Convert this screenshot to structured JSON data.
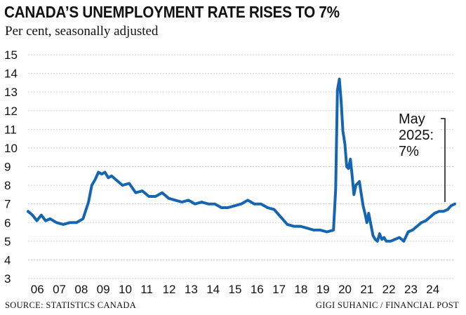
{
  "title": "CANADA’S UNEMPLOYMENT RATE RISES TO 7%",
  "subtitle": "Per cent, seasonally adjusted",
  "source": "SOURCE: STATISTICS CANADA",
  "credit": "GIGI SUHANIC / FINANCIAL POST",
  "annotation": {
    "line1": "May",
    "line2": "2025:",
    "line3": "7%"
  },
  "colors": {
    "line": "#1565b0",
    "text": "#111111",
    "grid": "#cfcfcf"
  },
  "chart_data": {
    "type": "line",
    "title": "CANADA’S UNEMPLOYMENT RATE RISES TO 7%",
    "subtitle": "Per cent, seasonally adjusted",
    "ylim": [
      3,
      15
    ],
    "yticks": [
      3,
      4,
      5,
      6,
      7,
      8,
      9,
      10,
      11,
      12,
      13,
      14,
      15
    ],
    "xlim": [
      2006.0,
      2025.42
    ],
    "xtick_labels": [
      "06",
      "07",
      "08",
      "09",
      "10",
      "11",
      "12",
      "13",
      "14",
      "15",
      "16",
      "17",
      "18",
      "19",
      "20",
      "21",
      "22",
      "23",
      "24"
    ],
    "grid": true,
    "series": [
      {
        "x": [
          2006.0,
          2006.2,
          2006.4,
          2006.6,
          2006.8,
          2007.0,
          2007.3,
          2007.6,
          2007.9,
          2008.2,
          2008.5,
          2008.75,
          2008.9,
          2009.05,
          2009.2,
          2009.35,
          2009.5,
          2009.65,
          2009.8,
          2010.0,
          2010.3,
          2010.6,
          2010.9,
          2011.2,
          2011.5,
          2011.8,
          2012.1,
          2012.4,
          2012.7,
          2013.0,
          2013.3,
          2013.6,
          2013.9,
          2014.2,
          2014.5,
          2014.8,
          2015.1,
          2015.4,
          2015.7,
          2016.0,
          2016.3,
          2016.6,
          2016.9,
          2017.2,
          2017.5,
          2017.8,
          2018.1,
          2018.4,
          2018.7,
          2019.0,
          2019.3,
          2019.6,
          2019.9,
          2020.0,
          2020.08,
          2020.17,
          2020.25,
          2020.33,
          2020.42,
          2020.5,
          2020.58,
          2020.67,
          2020.75,
          2020.83,
          2020.92,
          2021.0,
          2021.08,
          2021.17,
          2021.25,
          2021.33,
          2021.42,
          2021.5,
          2021.6,
          2021.7,
          2021.8,
          2021.9,
          2022.0,
          2022.1,
          2022.2,
          2022.3,
          2022.5,
          2022.7,
          2022.9,
          2023.1,
          2023.3,
          2023.5,
          2023.7,
          2023.9,
          2024.1,
          2024.3,
          2024.5,
          2024.7,
          2024.9,
          2025.1,
          2025.25,
          2025.42
        ],
        "y": [
          6.6,
          6.4,
          6.1,
          6.4,
          6.1,
          6.2,
          6.0,
          5.9,
          6.0,
          6.0,
          6.2,
          7.1,
          8.0,
          8.3,
          8.7,
          8.6,
          8.7,
          8.4,
          8.5,
          8.3,
          8.0,
          8.1,
          7.6,
          7.7,
          7.4,
          7.4,
          7.6,
          7.3,
          7.2,
          7.1,
          7.2,
          7.0,
          7.1,
          7.0,
          7.0,
          6.8,
          6.8,
          6.9,
          7.0,
          7.2,
          7.0,
          7.0,
          6.8,
          6.7,
          6.3,
          5.9,
          5.8,
          5.8,
          5.7,
          5.6,
          5.6,
          5.5,
          5.6,
          7.8,
          13.1,
          13.7,
          12.5,
          10.9,
          10.2,
          9.0,
          8.9,
          9.4,
          8.5,
          7.5,
          8.0,
          8.1,
          8.2,
          7.5,
          6.9,
          6.5,
          6.0,
          6.5,
          5.9,
          5.3,
          5.1,
          5.0,
          5.4,
          5.1,
          5.2,
          5.0,
          5.0,
          5.1,
          5.2,
          5.0,
          5.5,
          5.6,
          5.8,
          6.0,
          6.1,
          6.3,
          6.5,
          6.6,
          6.6,
          6.7,
          6.9,
          7.0
        ]
      }
    ]
  }
}
